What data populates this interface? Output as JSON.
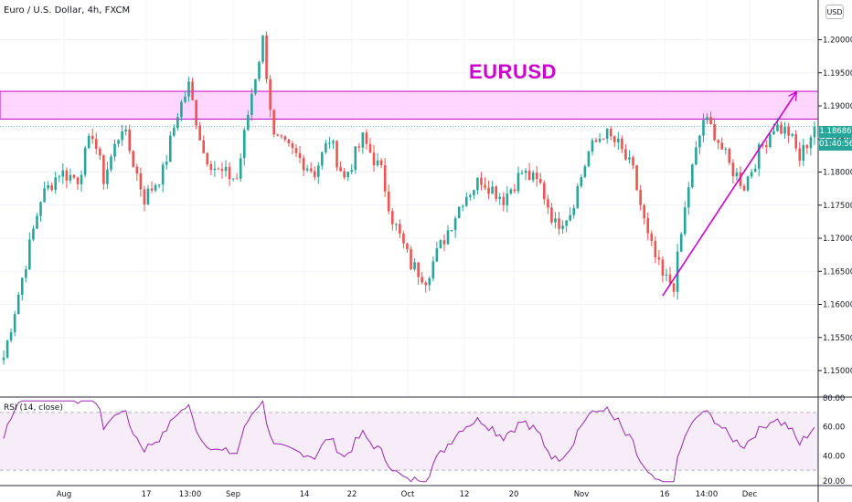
{
  "header": {
    "symbol_legend": "Euro / U.S. Dollar, 4h, FXCM",
    "currency_button": "USD"
  },
  "annotation": {
    "title": "EURUSD"
  },
  "colors": {
    "up": "#26a69a",
    "down": "#ef5350",
    "annotation": "#cc00cc",
    "zone_fill": "#ffc8ff",
    "rsi_line": "#9c27b0",
    "rsi_band": "#f3e5f5"
  },
  "price_axis": {
    "ticks": [
      "1.20000",
      "1.19500",
      "1.19000",
      "1.18500",
      "1.18000",
      "1.17500",
      "1.17000",
      "1.16500",
      "1.16000",
      "1.15500",
      "1.15000"
    ]
  },
  "last_price": {
    "value": "1.18686",
    "countdown": "01:40:56"
  },
  "rsi": {
    "label": "RSI (14, close)",
    "axis_ticks": [
      "80.00",
      "60.00",
      "40.00",
      "20.00"
    ]
  },
  "time_axis": {
    "labels": [
      "Aug",
      "17",
      "13:00",
      "Sep",
      "14",
      "22",
      "Oct",
      "12",
      "20",
      "Nov",
      "16",
      "14:00",
      "Dec"
    ]
  },
  "chart_data": {
    "type": "candlestick",
    "series_shape": [
      [
        0,
        1.152
      ],
      [
        5,
        1.164
      ],
      [
        10,
        1.176
      ],
      [
        15,
        1.18
      ],
      [
        20,
        1.179
      ],
      [
        24,
        1.186
      ],
      [
        27,
        1.179
      ],
      [
        32,
        1.187
      ],
      [
        38,
        1.176
      ],
      [
        43,
        1.18
      ],
      [
        47,
        1.189
      ],
      [
        50,
        1.193
      ],
      [
        54,
        1.183
      ],
      [
        58,
        1.18
      ],
      [
        63,
        1.179
      ],
      [
        67,
        1.192
      ],
      [
        70,
        1.2
      ],
      [
        73,
        1.185
      ],
      [
        78,
        1.183
      ],
      [
        84,
        1.18
      ],
      [
        88,
        1.185
      ],
      [
        92,
        1.179
      ],
      [
        97,
        1.185
      ],
      [
        102,
        1.18
      ],
      [
        105,
        1.173
      ],
      [
        110,
        1.166
      ],
      [
        114,
        1.164
      ],
      [
        119,
        1.17
      ],
      [
        124,
        1.176
      ],
      [
        129,
        1.179
      ],
      [
        135,
        1.176
      ],
      [
        140,
        1.18
      ],
      [
        145,
        1.178
      ],
      [
        149,
        1.172
      ],
      [
        153,
        1.174
      ],
      [
        158,
        1.183
      ],
      [
        162,
        1.186
      ],
      [
        166,
        1.184
      ],
      [
        170,
        1.18
      ],
      [
        174,
        1.17
      ],
      [
        178,
        1.164
      ],
      [
        181,
        1.163
      ],
      [
        185,
        1.178
      ],
      [
        189,
        1.188
      ],
      [
        192,
        1.186
      ],
      [
        196,
        1.181
      ],
      [
        200,
        1.178
      ],
      [
        204,
        1.183
      ],
      [
        208,
        1.187
      ],
      [
        212,
        1.186
      ],
      [
        215,
        1.182
      ],
      [
        219,
        1.1869
      ]
    ],
    "n_candles": 220,
    "y_range": [
      1.146,
      1.206
    ],
    "resistance_zone": [
      1.188,
      1.1922
    ],
    "trendline": {
      "start": [
        178,
        1.1613
      ],
      "end": [
        214,
        1.192
      ]
    },
    "rsi_range": [
      20,
      80
    ],
    "rsi_levels": [
      70,
      30
    ]
  }
}
